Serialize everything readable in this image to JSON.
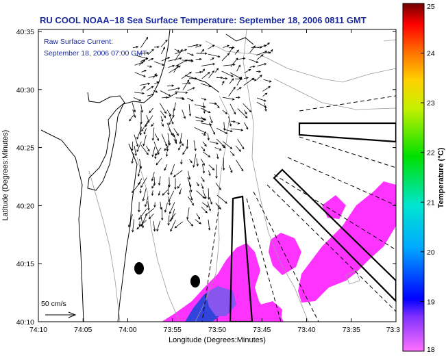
{
  "title": "RU COOL  NOAA−18  Sea Surface Temperature:  September 18, 2006 0811 GMT",
  "current_label": {
    "line1": "Raw Surface Current:",
    "line2": "September 18, 2006 07:00 GMT"
  },
  "axes": {
    "xlabel": "Longitude (Degrees:Minutes)",
    "ylabel": "Latitude (Degrees:Minutes)",
    "x_ticks": [
      "74:10",
      "74:05",
      "74:00",
      "73:55",
      "73:50",
      "73:45",
      "73:40",
      "73:35",
      "73:3"
    ],
    "y_ticks": [
      "40:35",
      "40:30",
      "40:25",
      "40:20",
      "40:15",
      "40:10"
    ]
  },
  "scale_label": "50 cm/s",
  "colorbar": {
    "label": "Temperature (°C)",
    "ticks": [
      "25",
      "24",
      "23",
      "22",
      "21",
      "20",
      "19",
      "18"
    ],
    "min": 18,
    "max": 25
  },
  "colors": {
    "title": "#1b2a9c",
    "sst_warm": "#ff33ff",
    "sst_cool": "#3344dd",
    "land_outline": "#000000",
    "isobath": "#999999"
  }
}
